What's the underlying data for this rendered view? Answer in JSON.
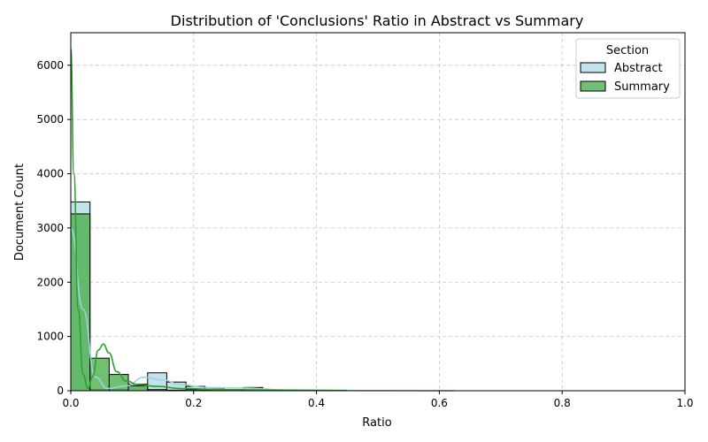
{
  "chart_data": {
    "type": "bar",
    "title": "Distribution of 'Conclusions' Ratio in Abstract vs Summary",
    "xlabel": "Ratio",
    "ylabel": "Document Count",
    "xlim": [
      0,
      1
    ],
    "ylim": [
      0,
      6600
    ],
    "xticks": [
      0.0,
      0.2,
      0.4,
      0.6,
      0.8,
      1.0
    ],
    "xtick_labels": [
      "0.0",
      "0.2",
      "0.4",
      "0.6",
      "0.8",
      "1.0"
    ],
    "yticks": [
      0,
      1000,
      2000,
      3000,
      4000,
      5000,
      6000
    ],
    "ytick_labels": [
      "0",
      "1000",
      "2000",
      "3000",
      "4000",
      "5000",
      "6000"
    ],
    "grid": true,
    "legend": {
      "title": "Section",
      "placement": "top-right"
    },
    "bin_width": 0.03125,
    "series": [
      {
        "name": "Abstract",
        "color": "#add8e6",
        "kde_color": "#9fd3d8",
        "bins": [
          0.0,
          0.03125,
          0.0625,
          0.09375,
          0.125,
          0.15625,
          0.1875,
          0.21875,
          0.25,
          0.28125
        ],
        "values": [
          3480,
          20,
          20,
          120,
          330,
          160,
          80,
          30,
          20,
          60
        ],
        "kde_x": [
          0.0,
          0.02,
          0.04,
          0.06,
          0.09,
          0.12,
          0.15,
          0.18,
          0.22,
          0.28,
          0.35,
          0.45,
          0.55,
          0.625
        ],
        "kde_y": [
          3000,
          1500,
          250,
          40,
          90,
          250,
          200,
          110,
          60,
          50,
          15,
          5,
          2,
          1
        ]
      },
      {
        "name": "Summary",
        "color": "#4caf50",
        "kde_color": "#2ca02c",
        "bins": [
          0.0,
          0.03125,
          0.0625,
          0.09375,
          0.125,
          0.15625,
          0.1875,
          0.21875,
          0.25,
          0.28125
        ],
        "values": [
          3260,
          600,
          300,
          90,
          20,
          10,
          20,
          10,
          10,
          10
        ],
        "kde_x": [
          0.0,
          0.005,
          0.012,
          0.02,
          0.028,
          0.035,
          0.045,
          0.053,
          0.062,
          0.075,
          0.09,
          0.11,
          0.14,
          0.18,
          0.25,
          0.35,
          0.45
        ],
        "kde_y": [
          6300,
          4000,
          1500,
          300,
          40,
          250,
          750,
          860,
          700,
          350,
          180,
          110,
          80,
          40,
          20,
          10,
          5
        ]
      }
    ]
  }
}
